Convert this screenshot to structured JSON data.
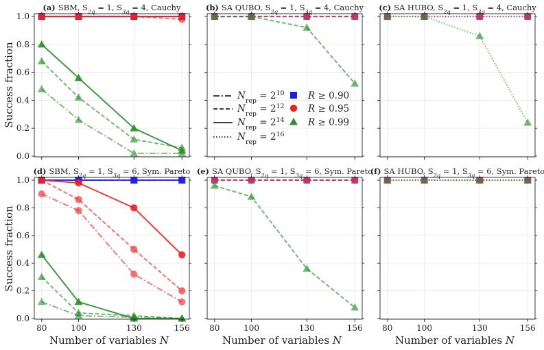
{
  "x_ticks": [
    80,
    100,
    130,
    156
  ],
  "y_ticks": [
    "0.0",
    "0.2",
    "0.4",
    "0.6",
    "0.8",
    "1.0"
  ],
  "xlabel": "Number of variables N",
  "ylabel": "Success fraction",
  "colors": {
    "r090": "#1f1fe0",
    "r095": "#e82323",
    "r099": "#2a8f2a",
    "magenta": "#b3478d"
  },
  "legend": {
    "nrep": [
      "N_rep = 2^10",
      "N_rep = 2^12",
      "N_rep = 2^14",
      "N_rep = 2^16"
    ],
    "ratio": [
      "R ≥ 0.90",
      "R ≥ 0.95",
      "R ≥ 0.99"
    ]
  },
  "panels": [
    {
      "label": "(a)",
      "title": "SBM, S_2q = 1, S_3q = 4, Cauchy"
    },
    {
      "label": "(b)",
      "title": "SA QUBO, S_2q = 1, S_3q = 4, Cauchy"
    },
    {
      "label": "(c)",
      "title": "SA HUBO, S_2q = 1, S_3q = 4, Cauchy"
    },
    {
      "label": "(d)",
      "title": "SBM, S_2q = 1, S_3q = 6, Sym. Pareto"
    },
    {
      "label": "(e)",
      "title": "SA QUBO, S_2q = 1, S_3q = 6, Sym. Pareto"
    },
    {
      "label": "(f)",
      "title": "SA HUBO, S_2q = 1, S_3q = 6, Sym. Pareto"
    }
  ],
  "chart_data": [
    {
      "type": "line",
      "x": [
        80,
        100,
        130,
        156
      ],
      "ylim": [
        0,
        1
      ],
      "series": [
        {
          "r": "0.90",
          "rep": "2^14",
          "values": [
            1,
            1,
            1,
            1
          ]
        },
        {
          "r": "0.95",
          "rep": "2^14",
          "values": [
            1,
            1,
            1,
            1
          ]
        },
        {
          "r": "0.95",
          "rep": "2^12",
          "values": [
            1,
            1,
            1,
            0.98
          ]
        },
        {
          "r": "0.99",
          "rep": "2^14",
          "values": [
            0.8,
            0.56,
            0.2,
            0.04
          ]
        },
        {
          "r": "0.99",
          "rep": "2^12",
          "values": [
            0.68,
            0.42,
            0.12,
            0.06
          ]
        },
        {
          "r": "0.99",
          "rep": "2^10",
          "values": [
            0.48,
            0.26,
            0.02,
            0.02
          ]
        }
      ]
    },
    {
      "type": "line",
      "x": [
        80,
        100,
        130,
        156
      ],
      "ylim": [
        0,
        1
      ],
      "series": [
        {
          "r": "0.90",
          "rep": "2^12",
          "values": [
            1,
            1,
            1,
            1
          ]
        },
        {
          "r": "0.95",
          "rep": "2^12",
          "values": [
            1,
            1,
            1,
            1
          ]
        },
        {
          "r": "0.99",
          "rep": "2^12",
          "values": [
            1,
            1,
            0.92,
            0.52
          ]
        }
      ]
    },
    {
      "type": "line",
      "x": [
        80,
        100,
        130,
        156
      ],
      "ylim": [
        0,
        1
      ],
      "series": [
        {
          "r": "0.90",
          "rep": "2^16",
          "values": [
            1,
            1,
            1,
            1
          ]
        },
        {
          "r": "0.95",
          "rep": "2^16",
          "values": [
            1,
            1,
            1,
            1
          ]
        },
        {
          "r": "0.99",
          "rep": "2^16",
          "values": [
            1,
            1,
            0.86,
            0.24
          ]
        }
      ]
    },
    {
      "type": "line",
      "x": [
        80,
        100,
        130,
        156
      ],
      "ylim": [
        0,
        1
      ],
      "series": [
        {
          "r": "0.90",
          "rep": "2^14",
          "values": [
            1,
            1,
            1,
            1
          ]
        },
        {
          "r": "0.90",
          "rep": "2^12",
          "values": [
            1,
            1,
            1,
            1
          ]
        },
        {
          "r": "0.95",
          "rep": "2^14",
          "values": [
            1,
            0.98,
            0.8,
            0.46
          ]
        },
        {
          "r": "0.95",
          "rep": "2^12",
          "values": [
            1,
            0.86,
            0.5,
            0.2
          ]
        },
        {
          "r": "0.95",
          "rep": "2^10",
          "values": [
            0.9,
            0.78,
            0.32,
            0.12
          ]
        },
        {
          "r": "0.99",
          "rep": "2^14",
          "values": [
            0.46,
            0.12,
            0.0,
            0.0
          ]
        },
        {
          "r": "0.99",
          "rep": "2^12",
          "values": [
            0.3,
            0.04,
            0.02,
            0.0
          ]
        },
        {
          "r": "0.99",
          "rep": "2^10",
          "values": [
            0.12,
            0.02,
            0.01,
            0.0
          ]
        }
      ]
    },
    {
      "type": "line",
      "x": [
        80,
        100,
        130,
        156
      ],
      "ylim": [
        0,
        1
      ],
      "series": [
        {
          "r": "0.90",
          "rep": "2^12",
          "values": [
            1,
            1,
            1,
            1
          ]
        },
        {
          "r": "0.95",
          "rep": "2^12",
          "values": [
            1,
            1,
            1,
            1
          ]
        },
        {
          "r": "0.99",
          "rep": "2^12",
          "values": [
            0.96,
            0.88,
            0.36,
            0.08
          ]
        }
      ]
    },
    {
      "type": "line",
      "x": [
        80,
        100,
        130,
        156
      ],
      "ylim": [
        0,
        1
      ],
      "series": [
        {
          "r": "0.90",
          "rep": "2^16",
          "values": [
            1,
            1,
            1,
            1
          ]
        },
        {
          "r": "0.95",
          "rep": "2^16",
          "values": [
            1,
            1,
            1,
            1
          ]
        },
        {
          "r": "0.99",
          "rep": "2^16",
          "values": [
            1,
            1,
            1,
            1
          ]
        }
      ]
    }
  ]
}
